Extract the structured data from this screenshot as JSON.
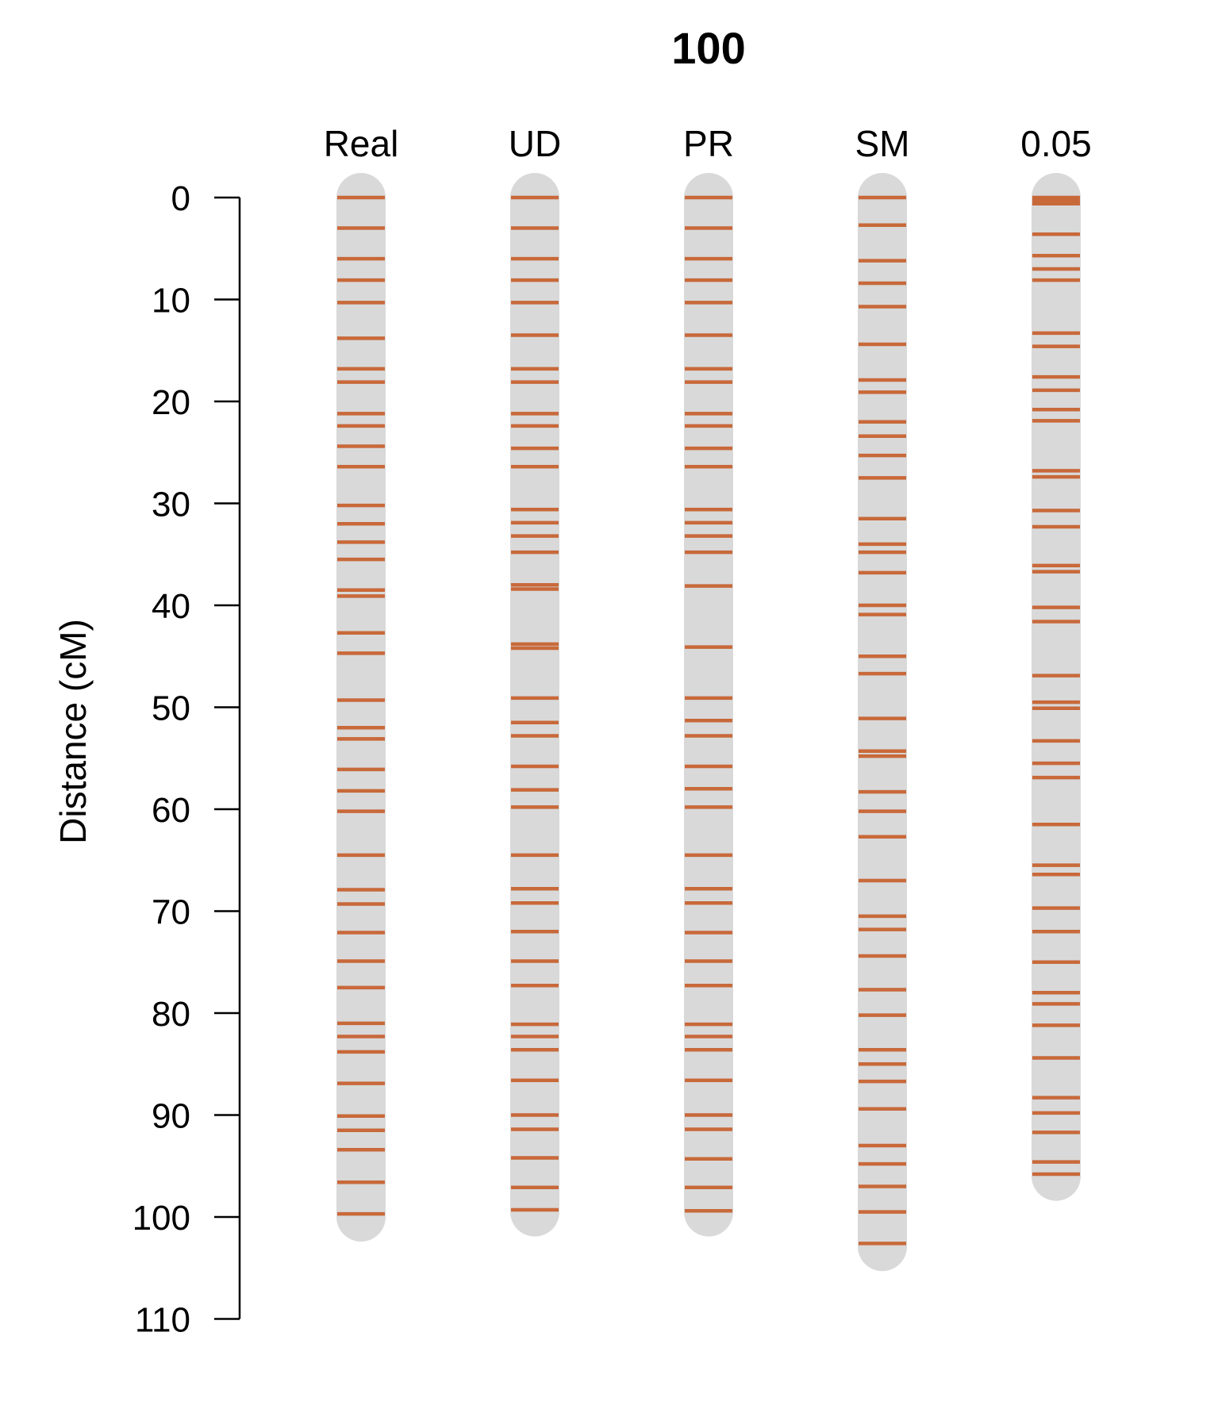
{
  "chart_data": {
    "type": "linkage-map",
    "title": "100",
    "ylabel": "Distance (cM)",
    "ylim": [
      0,
      110
    ],
    "y_ticks": [
      0,
      10,
      20,
      30,
      40,
      50,
      60,
      70,
      80,
      90,
      100,
      110
    ],
    "y_reversed": true,
    "colors": {
      "chromosome": "#d9d9d9",
      "marker": "#c8693a",
      "axis": "#000000"
    },
    "series": [
      {
        "name": "Real",
        "length": 100,
        "markers": [
          0,
          3,
          6,
          8.1,
          10.3,
          13.8,
          16.8,
          18.1,
          21.2,
          22.4,
          24.4,
          26.4,
          30.2,
          32,
          33.8,
          35.5,
          38.5,
          39.1,
          42.7,
          44.7,
          49.3,
          52,
          53.1,
          56.1,
          58.2,
          60.2,
          64.5,
          67.9,
          69.3,
          72.1,
          74.9,
          77.5,
          81,
          82.3,
          83.8,
          86.9,
          90.1,
          91.5,
          93.4,
          96.6,
          99.7
        ]
      },
      {
        "name": "UD",
        "length": 99.5,
        "markers": [
          0,
          3,
          6,
          8.1,
          10.3,
          13.5,
          16.8,
          18.1,
          21.2,
          22.4,
          24.6,
          26.4,
          30.6,
          31.9,
          33.2,
          34.8,
          38,
          38.4,
          43.8,
          44.2,
          49.1,
          51.5,
          52.8,
          55.8,
          58.1,
          59.8,
          64.5,
          67.8,
          69.2,
          72,
          74.9,
          77.3,
          81.1,
          82.3,
          83.6,
          86.6,
          90,
          91.4,
          94.2,
          97.1,
          99.3
        ]
      },
      {
        "name": "PR",
        "length": 99.5,
        "markers": [
          0,
          3,
          6,
          8.1,
          10.3,
          13.5,
          16.8,
          18.1,
          21.2,
          22.4,
          24.6,
          26.4,
          30.6,
          31.9,
          33.2,
          34.8,
          38.1,
          44.1,
          49.1,
          51.3,
          52.8,
          55.8,
          58,
          59.8,
          64.5,
          67.8,
          69.2,
          72.1,
          74.9,
          77.3,
          81.1,
          82.3,
          83.6,
          86.6,
          90,
          91.4,
          94.3,
          97.1,
          99.4
        ]
      },
      {
        "name": "SM",
        "length": 102.9,
        "markers": [
          0,
          2.7,
          6.2,
          8.4,
          10.7,
          14.4,
          17.9,
          19.1,
          22,
          23.4,
          25.3,
          27.5,
          31.5,
          34,
          34.8,
          36.8,
          40,
          40.9,
          45,
          46.7,
          51.1,
          54.3,
          54.8,
          58.3,
          60.2,
          62.7,
          67,
          70.5,
          71.8,
          74.4,
          77.7,
          80.2,
          83.6,
          85,
          86.7,
          89.4,
          93,
          94.8,
          97,
          99.5,
          102.6
        ]
      },
      {
        "name": "0.05",
        "length": 96,
        "markers": [
          0,
          0.3,
          0.6,
          3.6,
          5.7,
          7,
          8.1,
          13.3,
          14.6,
          17.6,
          18.9,
          20.8,
          21.9,
          26.8,
          27.4,
          30.7,
          32.3,
          36.1,
          36.7,
          40.2,
          41.6,
          46.9,
          49.5,
          50.1,
          53.3,
          55.5,
          56.9,
          61.5,
          65.5,
          66.4,
          69.7,
          72,
          75,
          78,
          79.1,
          81.2,
          84.4,
          88.3,
          89.8,
          91.7,
          94.6,
          95.8
        ]
      }
    ]
  }
}
